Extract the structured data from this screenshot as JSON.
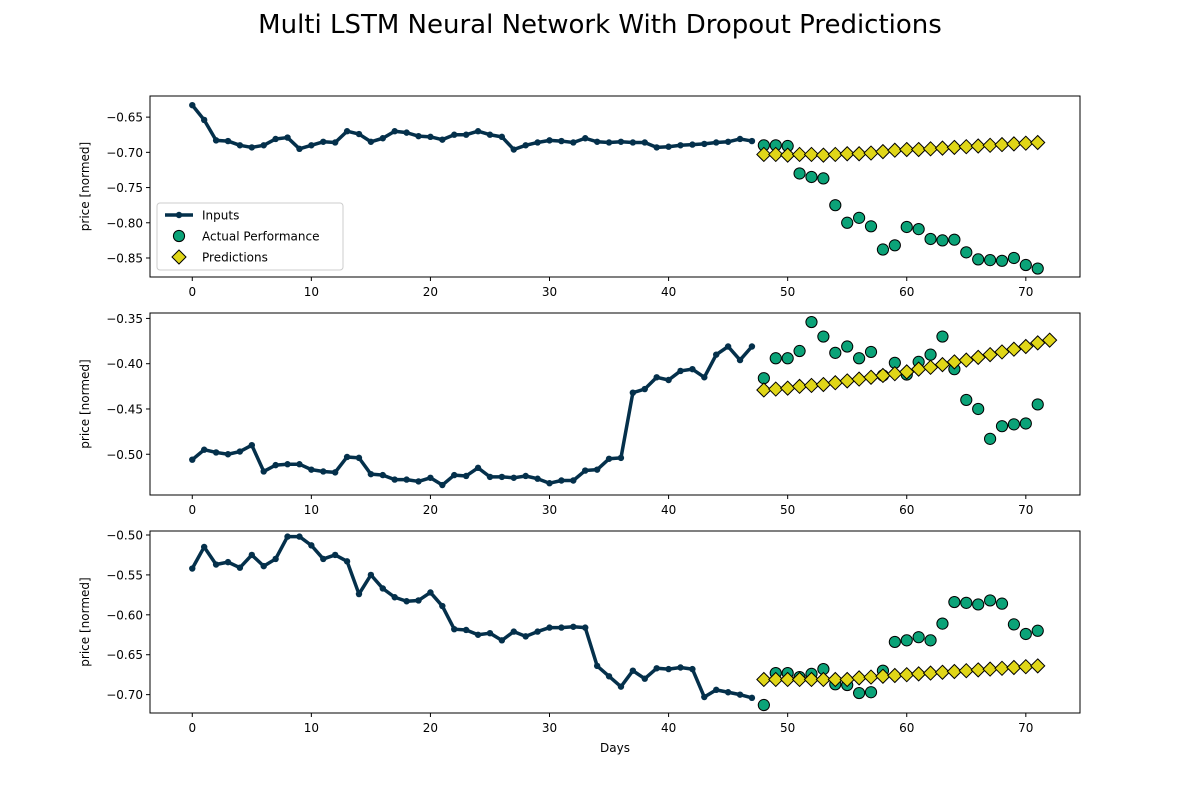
{
  "figure": {
    "title": "Multi LSTM Neural Network With Dropout Predictions"
  },
  "colors": {
    "inputs": "#04304b",
    "actual": "#0ba378",
    "predictions": "#e0d618",
    "edge": "#000000"
  },
  "legend": {
    "location": "lower-left of first panel",
    "items": [
      "Inputs",
      "Actual Performance",
      "Predictions"
    ]
  },
  "chart_data": [
    {
      "type": "line",
      "panel": 1,
      "ylabel": "price [normed]",
      "xlabel": "",
      "xlim": [
        -3.55,
        74.55
      ],
      "ylim": [
        -0.877,
        -0.62
      ],
      "xticks": [
        0,
        10,
        20,
        30,
        40,
        50,
        60,
        70
      ],
      "yticks": [
        -0.65,
        -0.7,
        -0.75,
        -0.8,
        -0.85
      ],
      "ytick_labels": [
        "−0.65",
        "−0.70",
        "−0.75",
        "−0.80",
        "−0.85"
      ],
      "series": [
        {
          "name": "Inputs",
          "kind": "line-marker",
          "x_start": 0,
          "values": [
            -0.633,
            -0.654,
            -0.683,
            -0.684,
            -0.69,
            -0.693,
            -0.69,
            -0.681,
            -0.679,
            -0.695,
            -0.69,
            -0.685,
            -0.686,
            -0.67,
            -0.674,
            -0.685,
            -0.68,
            -0.67,
            -0.672,
            -0.677,
            -0.678,
            -0.682,
            -0.675,
            -0.675,
            -0.67,
            -0.675,
            -0.678,
            -0.696,
            -0.69,
            -0.686,
            -0.683,
            -0.684,
            -0.686,
            -0.68,
            -0.685,
            -0.686,
            -0.685,
            -0.686,
            -0.686,
            -0.693,
            -0.692,
            -0.69,
            -0.689,
            -0.688,
            -0.686,
            -0.685,
            -0.681,
            -0.684
          ]
        },
        {
          "name": "Actual Performance",
          "kind": "scatter",
          "x_start": 48,
          "values": [
            -0.69,
            -0.69,
            -0.691,
            -0.73,
            -0.735,
            -0.737,
            -0.775,
            -0.8,
            -0.793,
            -0.805,
            -0.838,
            -0.832,
            -0.806,
            -0.809,
            -0.823,
            -0.825,
            -0.824,
            -0.842,
            -0.852,
            -0.853,
            -0.854,
            -0.85,
            -0.86,
            -0.865
          ]
        },
        {
          "name": "Predictions",
          "kind": "diamond",
          "x_start": 48,
          "values": [
            -0.703,
            -0.703,
            -0.704,
            -0.703,
            -0.703,
            -0.704,
            -0.703,
            -0.702,
            -0.702,
            -0.701,
            -0.699,
            -0.697,
            -0.696,
            -0.696,
            -0.695,
            -0.694,
            -0.693,
            -0.692,
            -0.691,
            -0.69,
            -0.689,
            -0.688,
            -0.687,
            -0.686
          ]
        }
      ]
    },
    {
      "type": "line",
      "panel": 2,
      "ylabel": "price [normed]",
      "xlabel": "",
      "xlim": [
        -3.55,
        74.55
      ],
      "ylim": [
        -0.545,
        -0.344
      ],
      "xticks": [
        0,
        10,
        20,
        30,
        40,
        50,
        60,
        70
      ],
      "yticks": [
        -0.35,
        -0.4,
        -0.45,
        -0.5
      ],
      "ytick_labels": [
        "−0.35",
        "−0.40",
        "−0.45",
        "−0.50"
      ],
      "series": [
        {
          "name": "Inputs",
          "kind": "line-marker",
          "x_start": 0,
          "values": [
            -0.506,
            -0.495,
            -0.498,
            -0.5,
            -0.497,
            -0.49,
            -0.519,
            -0.512,
            -0.511,
            -0.511,
            -0.517,
            -0.519,
            -0.52,
            -0.503,
            -0.504,
            -0.522,
            -0.523,
            -0.528,
            -0.528,
            -0.53,
            -0.526,
            -0.534,
            -0.523,
            -0.524,
            -0.515,
            -0.525,
            -0.525,
            -0.526,
            -0.524,
            -0.527,
            -0.532,
            -0.529,
            -0.529,
            -0.518,
            -0.517,
            -0.505,
            -0.504,
            -0.432,
            -0.428,
            -0.415,
            -0.418,
            -0.408,
            -0.406,
            -0.415,
            -0.39,
            -0.381,
            -0.396,
            -0.381
          ]
        },
        {
          "name": "Actual Performance",
          "kind": "scatter",
          "x_start": 48,
          "values": [
            -0.416,
            -0.394,
            -0.394,
            -0.386,
            -0.354,
            -0.37,
            -0.388,
            -0.381,
            -0.394,
            -0.387,
            -0.413,
            -0.399,
            -0.412,
            -0.398,
            -0.39,
            -0.37,
            -0.406,
            -0.44,
            -0.45,
            -0.483,
            -0.469,
            -0.467,
            -0.466,
            -0.445
          ]
        },
        {
          "name": "Predictions",
          "kind": "diamond",
          "x_start": 48,
          "values": [
            -0.429,
            -0.428,
            -0.427,
            -0.425,
            -0.424,
            -0.423,
            -0.421,
            -0.419,
            -0.417,
            -0.415,
            -0.413,
            -0.411,
            -0.409,
            -0.406,
            -0.404,
            -0.401,
            -0.398,
            -0.396,
            -0.393,
            -0.39,
            -0.387,
            -0.384,
            -0.381,
            -0.377,
            -0.374
          ]
        }
      ]
    },
    {
      "type": "line",
      "panel": 3,
      "ylabel": "price [normed]",
      "xlabel": "Days",
      "xlim": [
        -3.55,
        74.55
      ],
      "ylim": [
        -0.723,
        -0.495
      ],
      "xticks": [
        0,
        10,
        20,
        30,
        40,
        50,
        60,
        70
      ],
      "yticks": [
        -0.5,
        -0.55,
        -0.6,
        -0.65,
        -0.7
      ],
      "ytick_labels": [
        "−0.50",
        "−0.55",
        "−0.60",
        "−0.65",
        "−0.70"
      ],
      "series": [
        {
          "name": "Inputs",
          "kind": "line-marker",
          "x_start": 0,
          "values": [
            -0.542,
            -0.515,
            -0.537,
            -0.534,
            -0.541,
            -0.525,
            -0.539,
            -0.53,
            -0.502,
            -0.502,
            -0.513,
            -0.53,
            -0.525,
            -0.533,
            -0.574,
            -0.55,
            -0.567,
            -0.578,
            -0.583,
            -0.582,
            -0.572,
            -0.589,
            -0.618,
            -0.619,
            -0.625,
            -0.623,
            -0.632,
            -0.621,
            -0.627,
            -0.621,
            -0.616,
            -0.616,
            -0.615,
            -0.616,
            -0.664,
            -0.677,
            -0.69,
            -0.67,
            -0.68,
            -0.667,
            -0.668,
            -0.666,
            -0.668,
            -0.703,
            -0.694,
            -0.697,
            -0.7,
            -0.704
          ]
        },
        {
          "name": "Actual Performance",
          "kind": "scatter",
          "x_start": 48,
          "values": [
            -0.713,
            -0.673,
            -0.673,
            -0.678,
            -0.674,
            -0.668,
            -0.687,
            -0.688,
            -0.698,
            -0.697,
            -0.67,
            -0.634,
            -0.632,
            -0.628,
            -0.632,
            -0.611,
            -0.584,
            -0.585,
            -0.587,
            -0.582,
            -0.586,
            -0.612,
            -0.624,
            -0.62
          ]
        },
        {
          "name": "Predictions",
          "kind": "diamond",
          "x_start": 48,
          "values": [
            -0.681,
            -0.681,
            -0.681,
            -0.681,
            -0.681,
            -0.681,
            -0.681,
            -0.681,
            -0.679,
            -0.678,
            -0.677,
            -0.676,
            -0.675,
            -0.674,
            -0.673,
            -0.672,
            -0.671,
            -0.67,
            -0.669,
            -0.668,
            -0.667,
            -0.666,
            -0.665,
            -0.664
          ]
        }
      ]
    }
  ]
}
